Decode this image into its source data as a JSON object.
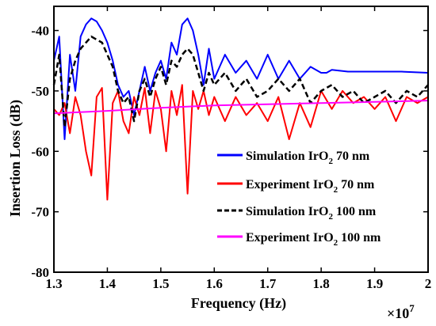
{
  "chart_data": {
    "type": "line",
    "xlabel": "Frequency (Hz)",
    "ylabel": "Insertion Loss (dB)",
    "x_multiplier_label": "×10",
    "x_multiplier_exponent": "7",
    "xlim": [
      1.3,
      2.0
    ],
    "ylim": [
      -80,
      -36
    ],
    "x_ticks": [
      "1.3",
      "1.4",
      "1.5",
      "1.6",
      "1.7",
      "1.8",
      "1.9",
      "2"
    ],
    "y_ticks": [
      "-40",
      "-50",
      "-60",
      "-70",
      "-80"
    ],
    "x_tick_values": [
      1.3,
      1.4,
      1.5,
      1.6,
      1.7,
      1.8,
      1.9,
      2.0
    ],
    "y_tick_values": [
      -40,
      -50,
      -60,
      -70,
      -80
    ],
    "legend_position": "right, middle",
    "series": [
      {
        "name_parts": [
          "Simulation IrO",
          "2",
          " 70 nm"
        ],
        "color": "#0000ff",
        "style": "solid",
        "x": [
          1.3,
          1.31,
          1.32,
          1.33,
          1.34,
          1.35,
          1.36,
          1.37,
          1.38,
          1.39,
          1.4,
          1.41,
          1.42,
          1.43,
          1.44,
          1.45,
          1.46,
          1.47,
          1.48,
          1.49,
          1.5,
          1.51,
          1.52,
          1.53,
          1.54,
          1.55,
          1.56,
          1.57,
          1.58,
          1.59,
          1.6,
          1.62,
          1.64,
          1.66,
          1.68,
          1.7,
          1.72,
          1.74,
          1.76,
          1.78,
          1.8,
          1.81,
          1.82,
          1.85,
          1.9,
          1.95,
          2.0
        ],
        "y": [
          -45,
          -41,
          -58,
          -44,
          -50,
          -41,
          -39,
          -38,
          -38.5,
          -40,
          -42,
          -45,
          -49,
          -51,
          -50,
          -54,
          -50,
          -46,
          -50,
          -47,
          -45,
          -48,
          -42,
          -44,
          -39,
          -38,
          -40,
          -44,
          -49,
          -43,
          -48,
          -44,
          -47,
          -45,
          -48,
          -44,
          -48,
          -45,
          -48,
          -46,
          -47,
          -47,
          -46.5,
          -46.8,
          -46.8,
          -46.8,
          -47
        ]
      },
      {
        "name_parts": [
          "Experiment IrO",
          "2",
          " 70 nm"
        ],
        "color": "#ff0000",
        "style": "solid",
        "x": [
          1.3,
          1.31,
          1.32,
          1.33,
          1.34,
          1.35,
          1.36,
          1.37,
          1.38,
          1.39,
          1.4,
          1.41,
          1.42,
          1.43,
          1.44,
          1.45,
          1.46,
          1.47,
          1.48,
          1.49,
          1.5,
          1.51,
          1.52,
          1.53,
          1.54,
          1.55,
          1.56,
          1.57,
          1.58,
          1.59,
          1.6,
          1.62,
          1.64,
          1.66,
          1.68,
          1.7,
          1.72,
          1.74,
          1.76,
          1.78,
          1.8,
          1.82,
          1.84,
          1.86,
          1.88,
          1.9,
          1.92,
          1.94,
          1.96,
          1.98,
          2.0
        ],
        "y": [
          -53,
          -54,
          -52,
          -57,
          -51,
          -54,
          -60,
          -64,
          -51,
          -49.5,
          -68,
          -52,
          -50,
          -55,
          -57,
          -51,
          -54,
          -49.5,
          -57,
          -50,
          -53,
          -60,
          -50,
          -54,
          -49,
          -67,
          -50,
          -53,
          -50,
          -54,
          -51,
          -55,
          -51,
          -54,
          -52,
          -55,
          -51,
          -58,
          -52,
          -56,
          -50,
          -53,
          -50,
          -52,
          -51,
          -53,
          -51,
          -55,
          -51,
          -52,
          -51
        ]
      },
      {
        "name_parts": [
          "Simulation IrO",
          "2",
          " 100 nm"
        ],
        "color": "#000000",
        "style": "dashed",
        "x": [
          1.3,
          1.31,
          1.32,
          1.33,
          1.34,
          1.35,
          1.36,
          1.37,
          1.38,
          1.39,
          1.4,
          1.41,
          1.42,
          1.43,
          1.44,
          1.45,
          1.46,
          1.47,
          1.48,
          1.49,
          1.5,
          1.51,
          1.52,
          1.53,
          1.54,
          1.55,
          1.56,
          1.57,
          1.58,
          1.59,
          1.6,
          1.62,
          1.64,
          1.66,
          1.68,
          1.7,
          1.72,
          1.74,
          1.76,
          1.78,
          1.8,
          1.82,
          1.84,
          1.86,
          1.88,
          1.9,
          1.92,
          1.94,
          1.96,
          1.98,
          2.0
        ],
        "y": [
          -49,
          -44,
          -56,
          -48,
          -45,
          -43,
          -42,
          -41,
          -41.5,
          -42,
          -44,
          -46,
          -50,
          -52,
          -51,
          -55,
          -50,
          -48,
          -51,
          -48,
          -46,
          -49,
          -45,
          -46,
          -44,
          -43,
          -44,
          -47,
          -50,
          -47,
          -49,
          -47,
          -50,
          -48,
          -51,
          -50,
          -48,
          -50,
          -48,
          -52,
          -50,
          -49,
          -51,
          -50,
          -52,
          -51,
          -50,
          -52,
          -50,
          -51,
          -49
        ]
      },
      {
        "name_parts": [
          "Experiment IrO",
          "2",
          " 100 nm"
        ],
        "color": "#ff00ff",
        "style": "solid",
        "x": [
          1.3,
          1.4,
          1.5,
          1.6,
          1.7,
          1.8,
          1.9,
          2.0
        ],
        "y": [
          -53.7,
          -53.3,
          -52.8,
          -52.4,
          -52.2,
          -52.0,
          -51.8,
          -51.6
        ]
      }
    ]
  }
}
